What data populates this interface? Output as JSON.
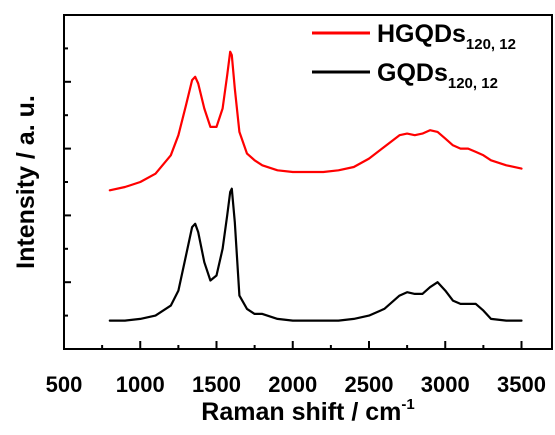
{
  "chart_data": {
    "type": "line",
    "xlabel": "Raman shift / cm",
    "xlabel_superscript": "-1",
    "ylabel": "Intensity / a. u.",
    "xlim": [
      500,
      3700
    ],
    "ylim": [
      0,
      100
    ],
    "y_tick_labels": "none",
    "grid": false,
    "legend_position": "top-right",
    "x_ticks": [
      500,
      1000,
      1500,
      2000,
      2500,
      3000,
      3500
    ],
    "x_tick_labels": [
      "500",
      "1000",
      "1500",
      "2000",
      "2500",
      "3000",
      "3500"
    ],
    "y_ticks": [
      0,
      20,
      40,
      60,
      80,
      100
    ],
    "series": [
      {
        "name": "HGQDs",
        "name_subscript": "120, 12",
        "color": "#ff0000",
        "x": [
          800,
          900,
          1000,
          1100,
          1200,
          1250,
          1300,
          1340,
          1360,
          1380,
          1420,
          1460,
          1500,
          1540,
          1570,
          1590,
          1600,
          1620,
          1650,
          1700,
          1750,
          1800,
          1900,
          2000,
          2100,
          2200,
          2300,
          2400,
          2500,
          2600,
          2700,
          2750,
          2800,
          2850,
          2900,
          2950,
          3000,
          3050,
          3100,
          3150,
          3200,
          3250,
          3300,
          3400,
          3500
        ],
        "y": [
          47.5,
          48.5,
          50,
          52.5,
          58,
          64,
          73,
          80.5,
          81.5,
          79.5,
          72,
          66.5,
          66.5,
          72,
          82,
          89,
          88,
          78,
          65,
          58.5,
          56.5,
          55,
          53.5,
          53,
          53,
          53,
          53.5,
          54.5,
          57,
          60.5,
          64,
          64.5,
          64,
          64.5,
          65.5,
          65,
          63,
          61,
          60,
          60,
          59,
          58,
          56.5,
          55,
          54
        ]
      },
      {
        "name": "GQDs",
        "name_subscript": "120, 12",
        "color": "#000000",
        "x": [
          800,
          900,
          1000,
          1100,
          1200,
          1250,
          1300,
          1340,
          1360,
          1380,
          1420,
          1460,
          1500,
          1540,
          1570,
          1590,
          1600,
          1620,
          1650,
          1700,
          1750,
          1800,
          1900,
          2000,
          2100,
          2200,
          2300,
          2400,
          2500,
          2600,
          2700,
          2750,
          2800,
          2850,
          2900,
          2950,
          3000,
          3050,
          3100,
          3150,
          3200,
          3250,
          3300,
          3400,
          3500
        ],
        "y": [
          8.5,
          8.5,
          9,
          10,
          13,
          17.5,
          28,
          36.5,
          37.5,
          35,
          26,
          20.5,
          22,
          30,
          40,
          47,
          48,
          38,
          16,
          12,
          10.5,
          10.5,
          9,
          8.5,
          8.5,
          8.5,
          8.5,
          9,
          10,
          12,
          16,
          17,
          16.5,
          16.5,
          18.5,
          20,
          17.5,
          14.5,
          13.5,
          13.5,
          13.5,
          11.5,
          9,
          8.5,
          8.5
        ]
      }
    ]
  }
}
